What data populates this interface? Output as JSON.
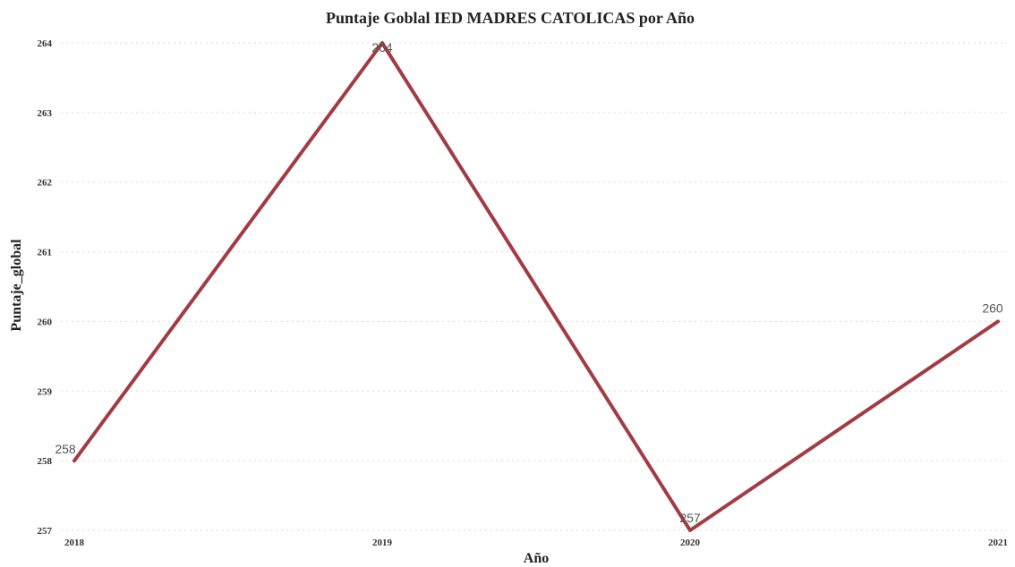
{
  "chart_data": {
    "type": "line",
    "title": "Puntaje Goblal IED MADRES CATOLICAS por Año",
    "xlabel": "Año",
    "ylabel": "Puntaje_global",
    "categories": [
      "2018",
      "2019",
      "2020",
      "2021"
    ],
    "series": [
      {
        "values": [
          258,
          264,
          257,
          260
        ],
        "color": "#a33b43"
      }
    ],
    "data_labels": [
      "258",
      "264",
      "257",
      "260"
    ],
    "ylim": [
      257,
      264
    ],
    "yticks": [
      257,
      258,
      259,
      260,
      261,
      262,
      263,
      264
    ],
    "grid": "horizontal-dotted",
    "legend": "none"
  }
}
